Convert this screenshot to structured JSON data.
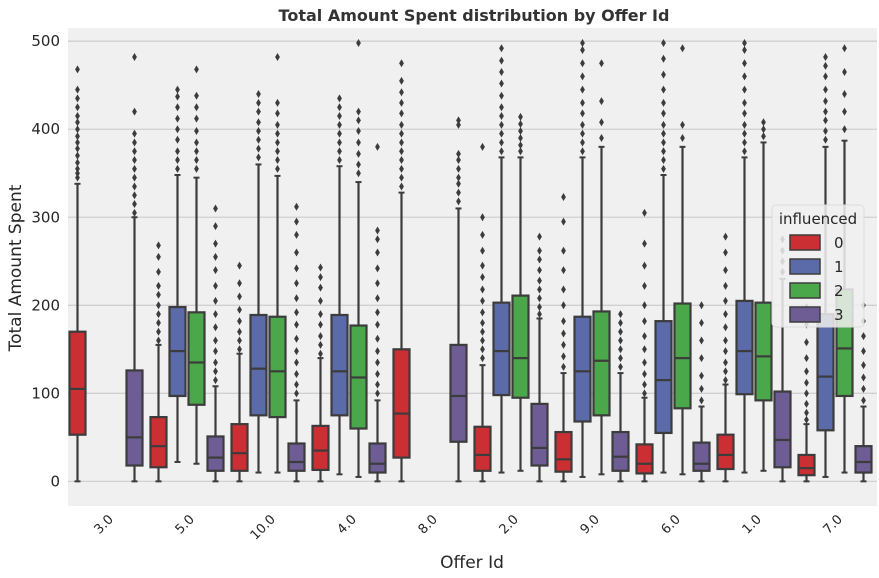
{
  "chart_data": {
    "type": "box",
    "title": "Total Amount Spent distribution by Offer Id",
    "xlabel": "Offer Id",
    "ylabel": "Total Amount Spent",
    "ylim": [
      -28,
      515
    ],
    "yticks": [
      0,
      100,
      200,
      300,
      400,
      500
    ],
    "categories": [
      "3.0",
      "5.0",
      "10.0",
      "4.0",
      "8.0",
      "2.0",
      "9.0",
      "6.0",
      "1.0",
      "7.0"
    ],
    "grid": true,
    "legend": {
      "title": "influenced",
      "placement": "right",
      "entries": [
        "0",
        "1",
        "2",
        "3"
      ]
    },
    "colors": {
      "0": "#cc2f33",
      "1": "#5b6aa8",
      "2": "#4aa84a",
      "3": "#6e5d94",
      "background": "#f0f0f0",
      "grid": "#d0d0d0",
      "outline": "#3c3c3c"
    },
    "series": [
      {
        "name": "0",
        "boxes": [
          {
            "category": "3.0",
            "q1": 53,
            "median": 105,
            "q3": 170,
            "lower": 0,
            "upper": 338,
            "outliers": [
              345,
              350,
              355,
              362,
              370,
              378,
              385,
              392,
              400,
              408,
              415,
              425,
              435,
              445,
              468
            ]
          },
          {
            "category": "5.0",
            "q1": 16,
            "median": 40,
            "q3": 73,
            "lower": 0,
            "upper": 155,
            "outliers": [
              160,
              170,
              180,
              190,
              200,
              212,
              222,
              238,
              255,
              268
            ]
          },
          {
            "category": "10.0",
            "q1": 12,
            "median": 32,
            "q3": 65,
            "lower": 0,
            "upper": 145,
            "outliers": [
              150,
              160,
              170,
              182,
              195,
              210,
              225,
              245
            ]
          },
          {
            "category": "4.0",
            "q1": 13,
            "median": 35,
            "q3": 63,
            "lower": 0,
            "upper": 140,
            "outliers": [
              145,
              155,
              165,
              178,
              190,
              205,
              220,
              232,
              243
            ]
          },
          {
            "category": "8.0",
            "q1": 27,
            "median": 77,
            "q3": 150,
            "lower": 0,
            "upper": 328,
            "outliers": [
              335,
              345,
              355,
              365,
              375,
              385,
              395,
              405,
              418,
              430,
              442,
              455,
              475
            ]
          },
          {
            "category": "2.0",
            "q1": 12,
            "median": 30,
            "q3": 62,
            "lower": 0,
            "upper": 132,
            "outliers": [
              140,
              150,
              160,
              170,
              180,
              192,
              205,
              218,
              232,
              245,
              262,
              280,
              300,
              380
            ]
          },
          {
            "category": "9.0",
            "q1": 11,
            "median": 25,
            "q3": 56,
            "lower": 0,
            "upper": 123,
            "outliers": [
              130,
              142,
              155,
              168,
              182,
              200,
              218,
              240,
              262,
              295,
              323
            ]
          },
          {
            "category": "6.0",
            "q1": 9,
            "median": 20,
            "q3": 42,
            "lower": 0,
            "upper": 95,
            "outliers": [
              100,
              110,
              122,
              135,
              150,
              165,
              182,
              200,
              222,
              245,
              270,
              305
            ]
          },
          {
            "category": "1.0",
            "q1": 14,
            "median": 30,
            "q3": 53,
            "lower": 0,
            "upper": 110,
            "outliers": [
              115,
              125,
              135,
              148,
              160,
              175,
              190,
              205,
              222,
              240,
              260,
              278
            ]
          },
          {
            "category": "7.0",
            "q1": 7,
            "median": 15,
            "q3": 30,
            "lower": 0,
            "upper": 65,
            "outliers": [
              70,
              78,
              88,
              100,
              112,
              125,
              140,
              158,
              178,
              198
            ]
          }
        ]
      },
      {
        "name": "1",
        "boxes": [
          {
            "category": "5.0",
            "q1": 97,
            "median": 148,
            "q3": 198,
            "lower": 22,
            "upper": 348,
            "outliers": [
              355,
              365,
              375,
              388,
              400,
              412,
              425,
              437,
              445
            ]
          },
          {
            "category": "10.0",
            "q1": 75,
            "median": 128,
            "q3": 189,
            "lower": 10,
            "upper": 360,
            "outliers": [
              368,
              378,
              388,
              398,
              408,
              420,
              430,
              440
            ]
          },
          {
            "category": "4.0",
            "q1": 75,
            "median": 125,
            "q3": 189,
            "lower": 8,
            "upper": 358,
            "outliers": [
              365,
              375,
              385,
              395,
              405,
              415,
              425,
              435
            ]
          },
          {
            "category": "2.0",
            "q1": 98,
            "median": 148,
            "q3": 203,
            "lower": 10,
            "upper": 368,
            "outliers": [
              375,
              385,
              395,
              405,
              415,
              425,
              438,
              452,
              465,
              478,
              492
            ]
          },
          {
            "category": "9.0",
            "q1": 68,
            "median": 125,
            "q3": 187,
            "lower": 5,
            "upper": 368,
            "outliers": [
              375,
              385,
              395,
              405,
              418,
              430,
              445,
              460,
              475,
              490,
              498
            ]
          },
          {
            "category": "6.0",
            "q1": 55,
            "median": 115,
            "q3": 182,
            "lower": 10,
            "upper": 348,
            "outliers": [
              355,
              365,
              375,
              385,
              395,
              405,
              418,
              430,
              445,
              462,
              480,
              498
            ]
          },
          {
            "category": "1.0",
            "q1": 99,
            "median": 148,
            "q3": 205,
            "lower": 10,
            "upper": 368,
            "outliers": [
              375,
              385,
              395,
              405,
              418,
              430,
              445,
              460,
              475,
              490,
              498
            ]
          },
          {
            "category": "7.0",
            "q1": 58,
            "median": 119,
            "q3": 190,
            "lower": 5,
            "upper": 380,
            "outliers": [
              388,
              398,
              410,
              420,
              432,
              445,
              460,
              472,
              482
            ]
          }
        ]
      },
      {
        "name": "2",
        "boxes": [
          {
            "category": "5.0",
            "q1": 87,
            "median": 135,
            "q3": 192,
            "lower": 20,
            "upper": 345,
            "outliers": [
              355,
              365,
              375,
              385,
              398,
              412,
              425,
              438,
              468
            ]
          },
          {
            "category": "10.0",
            "q1": 73,
            "median": 125,
            "q3": 187,
            "lower": 10,
            "upper": 347,
            "outliers": [
              355,
              365,
              375,
              385,
              395,
              405,
              418,
              430,
              482
            ]
          },
          {
            "category": "4.0",
            "q1": 60,
            "median": 118,
            "q3": 177,
            "lower": 5,
            "upper": 340,
            "outliers": [
              350,
              360,
              372,
              385,
              398,
              410,
              420,
              498
            ]
          },
          {
            "category": "2.0",
            "q1": 95,
            "median": 140,
            "q3": 211,
            "lower": 12,
            "upper": 368,
            "outliers": [
              375,
              382,
              390,
              398,
              406,
              414
            ]
          },
          {
            "category": "9.0",
            "q1": 75,
            "median": 137,
            "q3": 193,
            "lower": 8,
            "upper": 380,
            "outliers": [
              390,
              408,
              432,
              475
            ]
          },
          {
            "category": "6.0",
            "q1": 83,
            "median": 140,
            "q3": 202,
            "lower": 8,
            "upper": 380,
            "outliers": [
              390,
              405,
              492
            ]
          },
          {
            "category": "1.0",
            "q1": 92,
            "median": 142,
            "q3": 203,
            "lower": 12,
            "upper": 385,
            "outliers": [
              392,
              400,
              408
            ]
          },
          {
            "category": "7.0",
            "q1": 97,
            "median": 151,
            "q3": 218,
            "lower": 10,
            "upper": 387,
            "outliers": [
              400,
              420,
              440,
              465,
              492
            ]
          }
        ]
      },
      {
        "name": "3",
        "boxes": [
          {
            "category": "3.0",
            "q1": 18,
            "median": 50,
            "q3": 126,
            "lower": 0,
            "upper": 300,
            "outliers": [
              305,
              315,
              325,
              335,
              345,
              355,
              365,
              375,
              385,
              395,
              420,
              482
            ]
          },
          {
            "category": "5.0",
            "q1": 12,
            "median": 27,
            "q3": 51,
            "lower": 0,
            "upper": 108,
            "outliers": [
              115,
              125,
              135,
              148,
              160,
              175,
              190,
              205,
              222,
              240,
              255,
              270,
              290,
              310
            ]
          },
          {
            "category": "10.0",
            "q1": 12,
            "median": 22,
            "q3": 43,
            "lower": 0,
            "upper": 92,
            "outliers": [
              100,
              110,
              122,
              135,
              148,
              162,
              178,
              192,
              208,
              225,
              242,
              260,
              280,
              295,
              312
            ]
          },
          {
            "category": "4.0",
            "q1": 10,
            "median": 20,
            "q3": 43,
            "lower": 0,
            "upper": 92,
            "outliers": [
              100,
              110,
              122,
              135,
              148,
              162,
              178,
              192,
              208,
              225,
              242,
              260,
              275,
              285,
              380
            ]
          },
          {
            "category": "8.0",
            "q1": 45,
            "median": 97,
            "q3": 155,
            "lower": 0,
            "upper": 310,
            "outliers": [
              318,
              328,
              338,
              345,
              355,
              365,
              372,
              405,
              410
            ]
          },
          {
            "category": "2.0",
            "q1": 18,
            "median": 38,
            "q3": 88,
            "lower": 0,
            "upper": 185,
            "outliers": [
              190,
              198,
              208,
              218,
              228,
              240,
              252,
              262,
              278
            ]
          },
          {
            "category": "9.0",
            "q1": 12,
            "median": 28,
            "q3": 56,
            "lower": 0,
            "upper": 123,
            "outliers": [
              130,
              140,
              150,
              160,
              170,
              180,
              190
            ]
          },
          {
            "category": "6.0",
            "q1": 12,
            "median": 20,
            "q3": 44,
            "lower": 0,
            "upper": 85,
            "outliers": [
              92,
              105,
              120,
              140,
              160,
              180,
              200
            ]
          },
          {
            "category": "1.0",
            "q1": 16,
            "median": 47,
            "q3": 102,
            "lower": 0,
            "upper": 230,
            "outliers": [
              238,
              250,
              262,
              275
            ]
          },
          {
            "category": "7.0",
            "q1": 10,
            "median": 22,
            "q3": 40,
            "lower": 0,
            "upper": 85,
            "outliers": [
              92,
              105,
              118,
              132,
              148,
              165,
              182,
              200
            ]
          }
        ]
      }
    ]
  }
}
